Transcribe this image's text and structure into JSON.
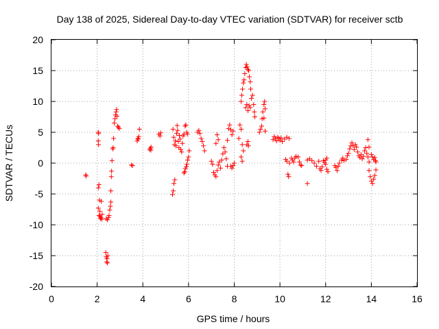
{
  "chart_data": {
    "type": "scatter",
    "title": "Day 138 of 2025, Sidereal Day-to-day VTEC variation (SDTVAR) for receiver sctb",
    "xlabel": "GPS time / hours",
    "ylabel": "SDTVAR / TECUs",
    "xlim": [
      0,
      16
    ],
    "ylim": [
      -20,
      20
    ],
    "xticks": [
      0,
      2,
      4,
      6,
      8,
      10,
      12,
      14,
      16
    ],
    "yticks": [
      -20,
      -15,
      -10,
      -5,
      0,
      5,
      10,
      15,
      20
    ],
    "xtick_labels": [
      "0",
      "2",
      "4",
      "6",
      "8",
      "10",
      "12",
      "14",
      "16"
    ],
    "ytick_labels": [
      "-20",
      "-15",
      "-10",
      "-5",
      "0",
      "5",
      "10",
      "15",
      "20"
    ],
    "grid": true,
    "marker": "+",
    "color": "#ff0000",
    "series": [
      {
        "name": "sctb",
        "points": [
          [
            1.5,
            -1.9
          ],
          [
            1.52,
            -2.1
          ],
          [
            2.05,
            5.0
          ],
          [
            2.05,
            3.6
          ],
          [
            2.06,
            3.0
          ],
          [
            2.06,
            4.8
          ],
          [
            2.05,
            -4.0
          ],
          [
            2.08,
            -3.5
          ],
          [
            2.1,
            -6.0
          ],
          [
            2.12,
            -7.8
          ],
          [
            2.12,
            -8.6
          ],
          [
            2.15,
            -9.0
          ],
          [
            2.17,
            -8.8
          ],
          [
            2.2,
            -9.1
          ],
          [
            2.18,
            -6.2
          ],
          [
            2.05,
            -7.3
          ],
          [
            2.08,
            -8.5
          ],
          [
            2.22,
            -8.3
          ],
          [
            2.38,
            -14.5
          ],
          [
            2.4,
            -15.2
          ],
          [
            2.42,
            -16.0
          ],
          [
            2.45,
            -16.2
          ],
          [
            2.47,
            -15.0
          ],
          [
            2.43,
            -15.5
          ],
          [
            2.4,
            -9.0
          ],
          [
            2.45,
            -9.2
          ],
          [
            2.5,
            -8.8
          ],
          [
            2.52,
            -8.5
          ],
          [
            2.55,
            -7.6
          ],
          [
            2.58,
            -7.0
          ],
          [
            2.6,
            -6.3
          ],
          [
            2.6,
            -4.5
          ],
          [
            2.62,
            -2.2
          ],
          [
            2.63,
            -1.3
          ],
          [
            2.65,
            0.4
          ],
          [
            2.68,
            2.3
          ],
          [
            2.7,
            2.5
          ],
          [
            2.72,
            4.0
          ],
          [
            2.75,
            6.5
          ],
          [
            2.78,
            7.2
          ],
          [
            2.8,
            7.8
          ],
          [
            2.83,
            8.3
          ],
          [
            2.85,
            8.7
          ],
          [
            2.87,
            7.6
          ],
          [
            2.9,
            6.0
          ],
          [
            2.93,
            5.8
          ],
          [
            2.97,
            5.6
          ],
          [
            3.5,
            -0.3
          ],
          [
            3.55,
            -0.4
          ],
          [
            3.75,
            3.6
          ],
          [
            3.78,
            4.0
          ],
          [
            3.82,
            4.3
          ],
          [
            3.85,
            5.5
          ],
          [
            3.8,
            3.9
          ],
          [
            4.3,
            2.2
          ],
          [
            4.33,
            2.4
          ],
          [
            4.36,
            2.6
          ],
          [
            4.35,
            2.1
          ],
          [
            4.7,
            4.7
          ],
          [
            4.75,
            4.4
          ],
          [
            4.78,
            4.9
          ],
          [
            5.3,
            -5.1
          ],
          [
            5.33,
            -4.5
          ],
          [
            5.36,
            -3.3
          ],
          [
            5.4,
            -2.7
          ],
          [
            5.32,
            5.5
          ],
          [
            5.35,
            4.2
          ],
          [
            5.38,
            3.0
          ],
          [
            5.42,
            3.6
          ],
          [
            5.45,
            2.8
          ],
          [
            5.48,
            4.8
          ],
          [
            5.5,
            6.1
          ],
          [
            5.52,
            5.3
          ],
          [
            5.55,
            3.5
          ],
          [
            5.58,
            2.5
          ],
          [
            5.6,
            4.5
          ],
          [
            5.63,
            3.9
          ],
          [
            5.66,
            2.2
          ],
          [
            5.7,
            1.8
          ],
          [
            5.73,
            3.2
          ],
          [
            5.76,
            4.4
          ],
          [
            5.8,
            4.7
          ],
          [
            5.8,
            -1.6
          ],
          [
            5.83,
            -1.4
          ],
          [
            5.86,
            -0.9
          ],
          [
            5.9,
            -0.6
          ],
          [
            5.93,
            -0.2
          ],
          [
            5.96,
            0.5
          ],
          [
            6.0,
            1.0
          ],
          [
            6.03,
            2.0
          ],
          [
            5.85,
            6.0
          ],
          [
            5.88,
            6.2
          ],
          [
            5.92,
            5.0
          ],
          [
            5.95,
            4.7
          ],
          [
            6.4,
            5.0
          ],
          [
            6.45,
            5.3
          ],
          [
            6.5,
            4.8
          ],
          [
            6.55,
            4.0
          ],
          [
            6.6,
            3.5
          ],
          [
            6.65,
            2.8
          ],
          [
            6.7,
            2.0
          ],
          [
            7.0,
            0.3
          ],
          [
            7.05,
            -0.2
          ],
          [
            7.1,
            -1.5
          ],
          [
            7.15,
            -1.9
          ],
          [
            7.2,
            -2.2
          ],
          [
            7.25,
            -1.2
          ],
          [
            7.3,
            -0.3
          ],
          [
            7.35,
            0.2
          ],
          [
            7.2,
            3.2
          ],
          [
            7.25,
            4.6
          ],
          [
            7.3,
            3.8
          ],
          [
            7.4,
            -0.8
          ],
          [
            7.45,
            0.5
          ],
          [
            7.5,
            1.5
          ],
          [
            7.55,
            2.5
          ],
          [
            7.6,
            1.8
          ],
          [
            7.65,
            0.7
          ],
          [
            7.7,
            -0.5
          ],
          [
            7.7,
            3.7
          ],
          [
            7.75,
            5.6
          ],
          [
            7.8,
            6.2
          ],
          [
            7.85,
            5.4
          ],
          [
            7.9,
            4.6
          ],
          [
            7.95,
            5.2
          ],
          [
            7.85,
            -0.5
          ],
          [
            7.9,
            -0.8
          ],
          [
            7.95,
            -0.4
          ],
          [
            8.0,
            0.0
          ],
          [
            8.2,
            4.0
          ],
          [
            8.25,
            6.2
          ],
          [
            8.3,
            5.5
          ],
          [
            8.35,
            3.0
          ],
          [
            8.4,
            2.0
          ],
          [
            8.3,
            1.0
          ],
          [
            8.35,
            0.3
          ],
          [
            8.3,
            10.0
          ],
          [
            8.33,
            11.0
          ],
          [
            8.36,
            12.0
          ],
          [
            8.4,
            13.0
          ],
          [
            8.43,
            13.5
          ],
          [
            8.46,
            14.5
          ],
          [
            8.5,
            15.5
          ],
          [
            8.53,
            16.0
          ],
          [
            8.56,
            15.6
          ],
          [
            8.6,
            15.2
          ],
          [
            8.63,
            15.0
          ],
          [
            8.66,
            14.0
          ],
          [
            8.7,
            13.2
          ],
          [
            8.72,
            12.0
          ],
          [
            8.5,
            9.0
          ],
          [
            8.55,
            9.5
          ],
          [
            8.6,
            8.5
          ],
          [
            8.65,
            9.3
          ],
          [
            8.7,
            9.0
          ],
          [
            8.75,
            10.5
          ],
          [
            8.8,
            11.0
          ],
          [
            8.85,
            9.5
          ],
          [
            8.88,
            8.3
          ],
          [
            8.9,
            7.5
          ],
          [
            8.55,
            3.0
          ],
          [
            8.6,
            3.5
          ],
          [
            8.62,
            2.8
          ],
          [
            9.1,
            5.0
          ],
          [
            9.15,
            5.5
          ],
          [
            9.2,
            6.0
          ],
          [
            9.22,
            7.2
          ],
          [
            9.25,
            8.3
          ],
          [
            9.3,
            9.5
          ],
          [
            9.33,
            10.0
          ],
          [
            9.35,
            8.8
          ],
          [
            9.3,
            7.3
          ],
          [
            9.35,
            5.2
          ],
          [
            9.7,
            3.8
          ],
          [
            9.75,
            4.3
          ],
          [
            9.8,
            4.0
          ],
          [
            9.85,
            3.6
          ],
          [
            9.9,
            4.2
          ],
          [
            9.95,
            4.0
          ],
          [
            10.0,
            3.7
          ],
          [
            10.05,
            4.1
          ],
          [
            10.1,
            3.5
          ],
          [
            10.2,
            3.9
          ],
          [
            10.3,
            4.2
          ],
          [
            10.4,
            4.0
          ],
          [
            10.25,
            0.6
          ],
          [
            10.3,
            0.3
          ],
          [
            10.35,
            -1.8
          ],
          [
            10.38,
            -2.2
          ],
          [
            10.42,
            0.0
          ],
          [
            10.5,
            0.8
          ],
          [
            10.55,
            0.5
          ],
          [
            10.6,
            0.2
          ],
          [
            10.65,
            0.8
          ],
          [
            10.7,
            1.1
          ],
          [
            10.8,
            1.0
          ],
          [
            10.85,
            0.2
          ],
          [
            10.9,
            -0.3
          ],
          [
            10.95,
            -0.4
          ],
          [
            11.2,
            -3.3
          ],
          [
            11.2,
            0.5
          ],
          [
            11.3,
            0.7
          ],
          [
            11.4,
            0.4
          ],
          [
            11.5,
            0.0
          ],
          [
            11.6,
            -0.5
          ],
          [
            11.7,
            0.3
          ],
          [
            11.75,
            -0.9
          ],
          [
            11.8,
            -1.2
          ],
          [
            11.85,
            -0.6
          ],
          [
            11.9,
            0.4
          ],
          [
            11.95,
            0.1
          ],
          [
            12.0,
            -0.2
          ],
          [
            12.05,
            -1.0
          ],
          [
            12.1,
            -1.4
          ],
          [
            12.0,
            0.5
          ],
          [
            12.05,
            0.8
          ],
          [
            12.4,
            -0.4
          ],
          [
            12.45,
            -0.7
          ],
          [
            12.5,
            -1.2
          ],
          [
            12.55,
            -0.5
          ],
          [
            12.6,
            0.0
          ],
          [
            12.7,
            0.5
          ],
          [
            12.75,
            0.8
          ],
          [
            12.8,
            0.4
          ],
          [
            12.9,
            0.6
          ],
          [
            12.95,
            1.2
          ],
          [
            13.0,
            1.6
          ],
          [
            13.05,
            2.3
          ],
          [
            13.1,
            2.8
          ],
          [
            13.15,
            3.3
          ],
          [
            13.2,
            2.8
          ],
          [
            13.25,
            2.2
          ],
          [
            13.3,
            3.0
          ],
          [
            13.35,
            2.6
          ],
          [
            13.4,
            1.8
          ],
          [
            13.45,
            1.2
          ],
          [
            13.5,
            0.9
          ],
          [
            13.55,
            1.4
          ],
          [
            13.6,
            0.7
          ],
          [
            13.65,
            1.1
          ],
          [
            13.7,
            2.0
          ],
          [
            13.75,
            2.5
          ],
          [
            13.8,
            1.6
          ],
          [
            13.85,
            1.0
          ],
          [
            13.9,
            0.2
          ],
          [
            13.85,
            3.8
          ],
          [
            13.9,
            2.6
          ],
          [
            13.9,
            -1.2
          ],
          [
            13.95,
            -2.2
          ],
          [
            14.0,
            -2.9
          ],
          [
            14.05,
            -3.3
          ],
          [
            14.1,
            -2.6
          ],
          [
            14.15,
            -2.0
          ],
          [
            14.2,
            -1.1
          ],
          [
            14.0,
            1.4
          ],
          [
            14.05,
            1.0
          ],
          [
            14.1,
            0.6
          ],
          [
            14.15,
            0.9
          ],
          [
            14.18,
            0.4
          ],
          [
            14.2,
            0.2
          ]
        ]
      }
    ]
  }
}
